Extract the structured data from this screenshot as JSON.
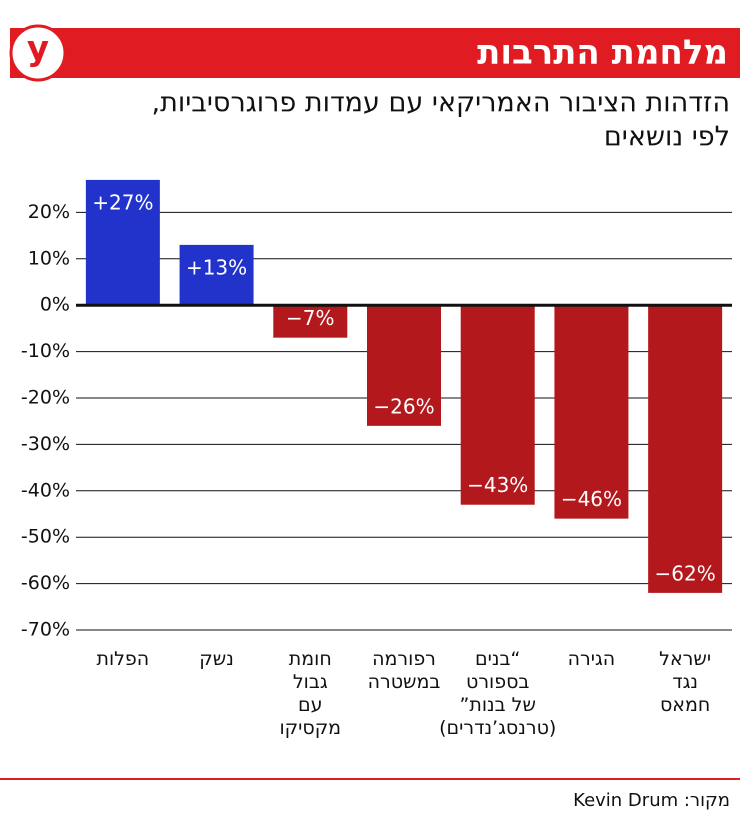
{
  "logo": "y",
  "chart_data": {
    "type": "bar",
    "title": "מלחמת התרבות",
    "subtitle": [
      "הזדהות הציבור האמריקאי עם עמדות פרוגרסיביות,",
      "לפי נושאים"
    ],
    "categories": [
      "הפלות",
      "נשק",
      "חומת\nגבול\nעם\nמקסיקו",
      "רפורמה\nבמשטרה",
      "“בנים\nבספורט\nשל בנות”\n(טרנסג’נדרים)",
      "הגירה",
      "ישראל\nנגד\nחמאס"
    ],
    "values": [
      27,
      13,
      -7,
      -26,
      -43,
      -46,
      -62
    ],
    "value_labels": [
      "+27%",
      "+13%",
      "−7%",
      "−26%",
      "−43%",
      "−46%",
      "−62%"
    ],
    "colors": [
      "#2233cc",
      "#2233cc",
      "#b3181c",
      "#b3181c",
      "#b3181c",
      "#b3181c",
      "#b3181c"
    ],
    "ylim": [
      -70,
      30
    ],
    "yticks": [
      {
        "value": 20,
        "label": "20%"
      },
      {
        "value": 10,
        "label": "10%"
      },
      {
        "value": 0,
        "label": "0%"
      },
      {
        "value": -10,
        "label": "-10%"
      },
      {
        "value": -20,
        "label": "-20%"
      },
      {
        "value": -30,
        "label": "-30%"
      },
      {
        "value": -40,
        "label": "-40%"
      },
      {
        "value": -50,
        "label": "-50%"
      },
      {
        "value": -60,
        "label": "-60%"
      },
      {
        "value": -70,
        "label": "-70%"
      }
    ],
    "grid": true,
    "source": "מקור: Kevin Drum"
  }
}
